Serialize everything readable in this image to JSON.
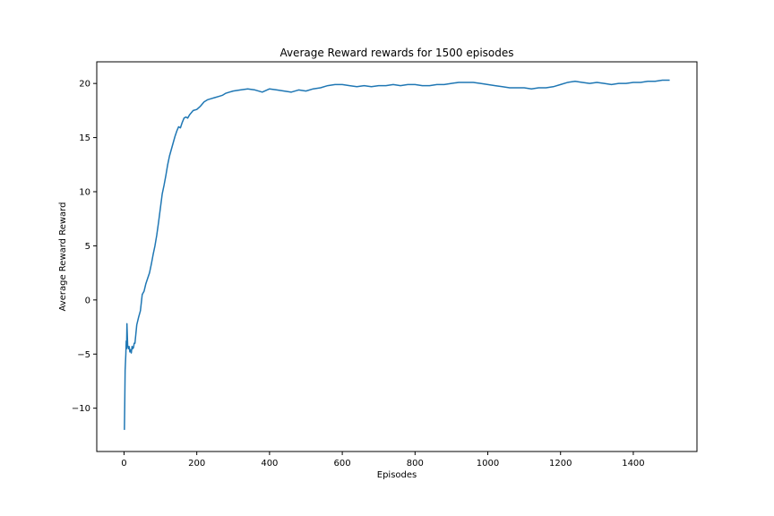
{
  "chart_data": {
    "type": "line",
    "title": "Average Reward rewards for 1500 episodes",
    "xlabel": "Episodes",
    "ylabel": "Average Reward Reward",
    "xlim": [
      -75,
      1575
    ],
    "ylim": [
      -14,
      22
    ],
    "xticks": [
      0,
      200,
      400,
      600,
      800,
      1000,
      1200,
      1400
    ],
    "yticks": [
      -10,
      -5,
      0,
      5,
      10,
      15,
      20
    ],
    "grid": false,
    "legend": "none",
    "series": [
      {
        "color": "#1f77b4",
        "x": [
          1,
          2,
          3,
          5,
          6,
          7,
          8,
          10,
          12,
          14,
          16,
          18,
          20,
          22,
          24,
          26,
          28,
          30,
          35,
          40,
          45,
          50,
          55,
          60,
          65,
          70,
          75,
          80,
          85,
          90,
          95,
          100,
          105,
          110,
          115,
          120,
          125,
          130,
          135,
          140,
          145,
          150,
          155,
          160,
          165,
          170,
          175,
          180,
          190,
          200,
          210,
          220,
          230,
          240,
          250,
          260,
          270,
          280,
          290,
          300,
          320,
          340,
          360,
          380,
          400,
          420,
          440,
          460,
          480,
          500,
          520,
          540,
          560,
          580,
          600,
          620,
          640,
          660,
          680,
          700,
          720,
          740,
          760,
          780,
          800,
          820,
          840,
          860,
          880,
          900,
          920,
          940,
          960,
          980,
          1000,
          1020,
          1040,
          1060,
          1080,
          1100,
          1120,
          1140,
          1160,
          1180,
          1200,
          1220,
          1240,
          1260,
          1280,
          1300,
          1320,
          1340,
          1360,
          1380,
          1400,
          1420,
          1440,
          1460,
          1480,
          1500
        ],
        "y": [
          -12.0,
          -9.5,
          -6.5,
          -5.0,
          -3.8,
          -4.5,
          -2.2,
          -4.2,
          -4.5,
          -4.3,
          -4.8,
          -4.6,
          -4.9,
          -4.3,
          -4.5,
          -4.4,
          -4.0,
          -4.0,
          -2.3,
          -1.6,
          -1.0,
          0.5,
          0.8,
          1.5,
          2.0,
          2.5,
          3.3,
          4.2,
          5.0,
          6.0,
          7.2,
          8.5,
          9.8,
          10.6,
          11.5,
          12.5,
          13.3,
          13.9,
          14.5,
          15.1,
          15.6,
          16.0,
          15.9,
          16.4,
          16.8,
          16.9,
          16.8,
          17.1,
          17.5,
          17.6,
          17.9,
          18.3,
          18.5,
          18.6,
          18.7,
          18.8,
          18.9,
          19.1,
          19.2,
          19.3,
          19.4,
          19.5,
          19.4,
          19.2,
          19.5,
          19.4,
          19.3,
          19.2,
          19.4,
          19.3,
          19.5,
          19.6,
          19.8,
          19.9,
          19.9,
          19.8,
          19.7,
          19.8,
          19.7,
          19.8,
          19.8,
          19.9,
          19.8,
          19.9,
          19.9,
          19.8,
          19.8,
          19.9,
          19.9,
          20.0,
          20.1,
          20.1,
          20.1,
          20.0,
          19.9,
          19.8,
          19.7,
          19.6,
          19.6,
          19.6,
          19.5,
          19.6,
          19.6,
          19.7,
          19.9,
          20.1,
          20.2,
          20.1,
          20.0,
          20.1,
          20.0,
          19.9,
          20.0,
          20.0,
          20.1,
          20.1,
          20.2,
          20.2,
          20.3,
          20.3
        ]
      }
    ]
  }
}
